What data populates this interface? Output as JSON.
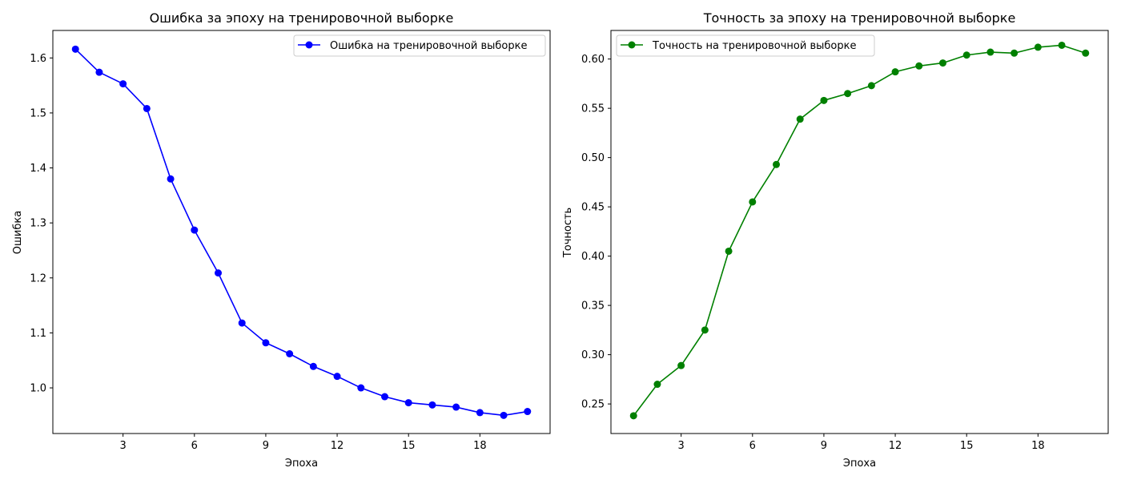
{
  "chart_data": [
    {
      "type": "line",
      "title": "Ошибка за эпоху на тренировочной выборке",
      "xlabel": "Эпоха",
      "ylabel": "Ошибка",
      "legend_position": "top-right",
      "grid": false,
      "color": "#0000ff",
      "xlim": [
        0.05,
        20.95
      ],
      "ylim": [
        0.917,
        1.65
      ],
      "xticks": [
        3,
        6,
        9,
        12,
        15,
        18
      ],
      "yticks": [
        1.0,
        1.1,
        1.2,
        1.3,
        1.4,
        1.5,
        1.6
      ],
      "ytick_labels": [
        "1.0",
        "1.1",
        "1.2",
        "1.3",
        "1.4",
        "1.5",
        "1.6"
      ],
      "x": [
        1,
        2,
        3,
        4,
        5,
        6,
        7,
        8,
        9,
        10,
        11,
        12,
        13,
        14,
        15,
        16,
        17,
        18,
        19,
        20
      ],
      "series": [
        {
          "name": "Ошибка на тренировочной выборке",
          "values": [
            1.616,
            1.574,
            1.553,
            1.508,
            1.38,
            1.287,
            1.209,
            1.118,
            1.082,
            1.062,
            1.039,
            1.021,
            1.0,
            0.984,
            0.973,
            0.969,
            0.965,
            0.955,
            0.95,
            0.957
          ]
        }
      ]
    },
    {
      "type": "line",
      "title": "Точность за эпоху на тренировочной выборке",
      "xlabel": "Эпоха",
      "ylabel": "Точность",
      "legend_position": "top-left",
      "grid": false,
      "color": "#008000",
      "xlim": [
        0.05,
        20.95
      ],
      "ylim": [
        0.22,
        0.629
      ],
      "xticks": [
        3,
        6,
        9,
        12,
        15,
        18
      ],
      "yticks": [
        0.25,
        0.3,
        0.35,
        0.4,
        0.45,
        0.5,
        0.55,
        0.6
      ],
      "ytick_labels": [
        "0.25",
        "0.30",
        "0.35",
        "0.40",
        "0.45",
        "0.50",
        "0.55",
        "0.60"
      ],
      "x": [
        1,
        2,
        3,
        4,
        5,
        6,
        7,
        8,
        9,
        10,
        11,
        12,
        13,
        14,
        15,
        16,
        17,
        18,
        19,
        20
      ],
      "series": [
        {
          "name": "Точность на тренировочной выборке",
          "values": [
            0.238,
            0.27,
            0.289,
            0.325,
            0.405,
            0.455,
            0.493,
            0.539,
            0.558,
            0.565,
            0.573,
            0.587,
            0.593,
            0.596,
            0.604,
            0.607,
            0.606,
            0.612,
            0.614,
            0.606
          ]
        }
      ]
    }
  ]
}
